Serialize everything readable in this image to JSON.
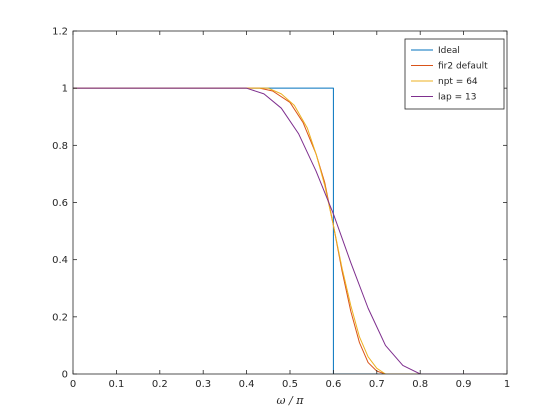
{
  "chart_data": {
    "type": "line",
    "title": "",
    "xlabel": "ω / π",
    "ylabel": "",
    "xlim": [
      0,
      1
    ],
    "ylim": [
      0,
      1.2
    ],
    "x_ticks": [
      0,
      0.1,
      0.2,
      0.3,
      0.4,
      0.5,
      0.6,
      0.7,
      0.8,
      0.9,
      1
    ],
    "x_tick_labels": [
      "0",
      "0.1",
      "0.2",
      "0.3",
      "0.4",
      "0.5",
      "0.6",
      "0.7",
      "0.8",
      "0.9",
      "1"
    ],
    "y_ticks": [
      0,
      0.2,
      0.4,
      0.6,
      0.8,
      1,
      1.2
    ],
    "y_tick_labels": [
      "0",
      "0.2",
      "0.4",
      "0.6",
      "0.8",
      "1",
      "1.2"
    ],
    "grid": false,
    "legend_position": "top-right",
    "series": [
      {
        "name": "Ideal",
        "color": "#0072BD",
        "x": [
          0,
          0.6,
          0.6,
          1
        ],
        "y": [
          1,
          1,
          0,
          0
        ]
      },
      {
        "name": "fir2 default",
        "color": "#D95319",
        "x": [
          0,
          0.43,
          0.46,
          0.5,
          0.53,
          0.56,
          0.58,
          0.6,
          0.62,
          0.64,
          0.66,
          0.68,
          0.7,
          0.72,
          0.75,
          1
        ],
        "y": [
          1,
          1,
          0.99,
          0.95,
          0.88,
          0.77,
          0.67,
          0.52,
          0.36,
          0.22,
          0.11,
          0.04,
          0.01,
          0,
          0,
          0
        ]
      },
      {
        "name": "npt = 64",
        "color": "#EDB120",
        "x": [
          0,
          0.45,
          0.48,
          0.51,
          0.54,
          0.56,
          0.58,
          0.6,
          0.62,
          0.64,
          0.66,
          0.68,
          0.7,
          0.72,
          0.74,
          1
        ],
        "y": [
          1,
          1,
          0.98,
          0.94,
          0.86,
          0.77,
          0.66,
          0.52,
          0.37,
          0.24,
          0.13,
          0.06,
          0.02,
          0,
          0,
          0
        ]
      },
      {
        "name": "lap = 13",
        "color": "#7E2F8E",
        "x": [
          0,
          0.4,
          0.44,
          0.48,
          0.52,
          0.56,
          0.6,
          0.64,
          0.68,
          0.72,
          0.76,
          0.8,
          1
        ],
        "y": [
          1,
          1,
          0.98,
          0.93,
          0.84,
          0.71,
          0.56,
          0.39,
          0.23,
          0.1,
          0.03,
          0,
          0
        ]
      }
    ]
  }
}
